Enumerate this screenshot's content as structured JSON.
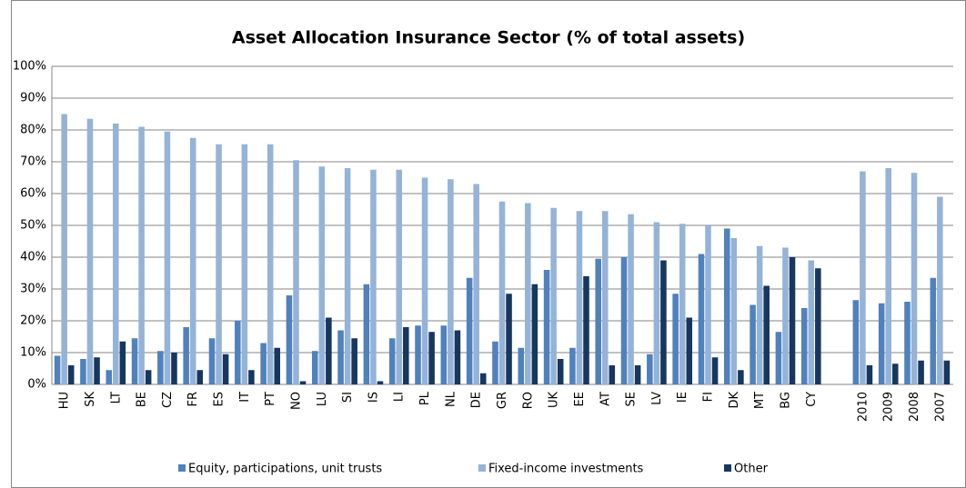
{
  "chart_data": {
    "type": "bar",
    "title": "Asset Allocation  Insurance Sector (% of total assets)",
    "categories": [
      "HU",
      "SK",
      "LT",
      "BE",
      "CZ",
      "FR",
      "ES",
      "IT",
      "PT",
      "NO",
      "LU",
      "SI",
      "IS",
      "LI",
      "PL",
      "NL",
      "DE",
      "GR",
      "RO",
      "UK",
      "EE",
      "AT",
      "SE",
      "LV",
      "IE",
      "FI",
      "DK",
      "MT",
      "BG",
      "CY",
      null,
      "2010",
      "2009",
      "2008",
      "2007"
    ],
    "series": [
      {
        "name": "Equity, participations, unit trusts",
        "color": "#4f81bd",
        "values": [
          9,
          8,
          4.5,
          14.5,
          10.5,
          18,
          14.5,
          20,
          13,
          28,
          10.5,
          17,
          31.5,
          14.5,
          18.5,
          18.5,
          33.5,
          13.5,
          11.5,
          36,
          11.5,
          39.5,
          40,
          9.5,
          28.5,
          41,
          49,
          25,
          16.5,
          24,
          null,
          26.5,
          25.5,
          26,
          33.5
        ]
      },
      {
        "name": "Fixed-income investments",
        "color": "#95b3d7",
        "values": [
          85,
          83.5,
          82,
          81,
          79.5,
          77.5,
          75.5,
          75.5,
          75.5,
          70.5,
          68.5,
          68,
          67.5,
          67.5,
          65,
          64.5,
          63,
          57.5,
          57,
          55.5,
          54.5,
          54.5,
          53.5,
          51,
          50.5,
          50,
          46,
          43.5,
          43,
          39,
          null,
          67,
          68,
          66.5,
          59
        ]
      },
      {
        "name": "Other",
        "color": "#17375e",
        "values": [
          6,
          8.5,
          13.5,
          4.5,
          10,
          4.5,
          9.5,
          4.5,
          11.5,
          1,
          21,
          14.5,
          1,
          18,
          16.5,
          17,
          3.5,
          28.5,
          31.5,
          8,
          34,
          6,
          6,
          39,
          21,
          8.5,
          4.5,
          31,
          40,
          36.5,
          null,
          6,
          6.5,
          7.5,
          7.5
        ]
      }
    ],
    "ylim": [
      0,
      100
    ],
    "yticks": [
      {
        "value": 0,
        "label": "0%"
      },
      {
        "value": 10,
        "label": "10%"
      },
      {
        "value": 20,
        "label": "20%"
      },
      {
        "value": 30,
        "label": "30%"
      },
      {
        "value": 40,
        "label": "40%"
      },
      {
        "value": 50,
        "label": "50%"
      },
      {
        "value": 60,
        "label": "60%"
      },
      {
        "value": 70,
        "label": "70%"
      },
      {
        "value": 80,
        "label": "80%"
      },
      {
        "value": 90,
        "label": "90%"
      },
      {
        "value": 100,
        "label": "100%"
      }
    ],
    "grid": true,
    "legend": "bottom"
  }
}
